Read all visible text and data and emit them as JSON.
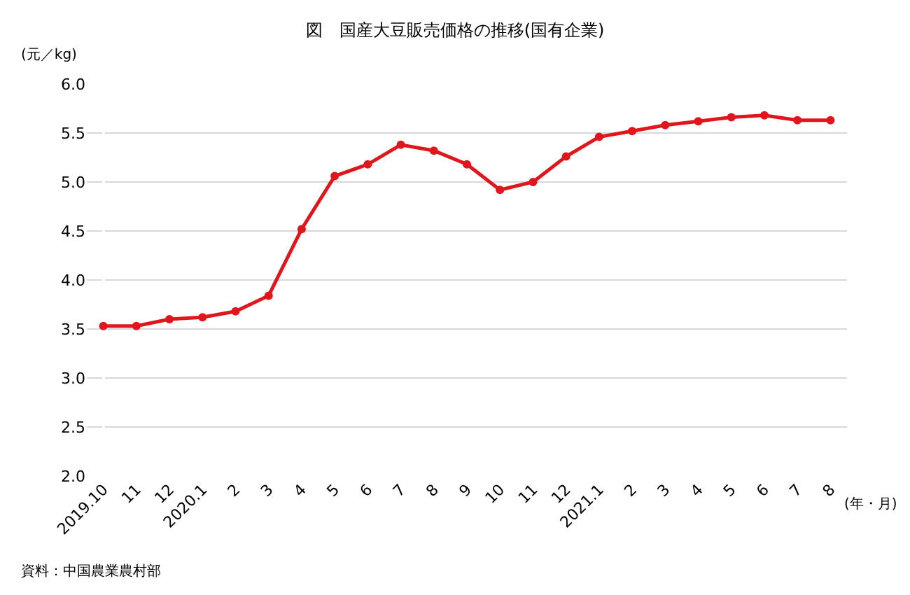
{
  "chart_data": {
    "type": "line",
    "title": "図　国産大豆販売価格の推移(国有企業)",
    "ylabel": "(元／kg)",
    "xlabel": "(年・月)",
    "categories": [
      "2019.10",
      "11",
      "12",
      "2020.1",
      "2",
      "3",
      "4",
      "5",
      "6",
      "7",
      "8",
      "9",
      "10",
      "11",
      "12",
      "2021.1",
      "2",
      "3",
      "4",
      "5",
      "6",
      "7",
      "8"
    ],
    "series": [
      {
        "color": "#e0161d",
        "values": [
          3.53,
          3.53,
          3.6,
          3.62,
          3.68,
          3.84,
          4.52,
          5.06,
          5.18,
          5.38,
          5.32,
          5.18,
          4.92,
          5.0,
          5.26,
          5.46,
          5.52,
          5.58,
          5.62,
          5.66,
          5.68,
          5.63,
          5.63
        ]
      }
    ],
    "ylim": [
      2.0,
      6.0
    ],
    "yticks": [
      {
        "value": 2.0,
        "label": "2.0"
      },
      {
        "value": 2.5,
        "label": "2.5"
      },
      {
        "value": 3.0,
        "label": "3.0"
      },
      {
        "value": 3.5,
        "label": "3.5"
      },
      {
        "value": 4.0,
        "label": "4.0"
      },
      {
        "value": 4.5,
        "label": "4.5"
      },
      {
        "value": 5.0,
        "label": "5.0"
      },
      {
        "value": 5.5,
        "label": "5.5"
      },
      {
        "value": 6.0,
        "label": "6.0"
      }
    ],
    "grid": "y",
    "marker": "circle",
    "line_style": "solid",
    "legend": false,
    "annotations": [
      "資料：中国農業農村部"
    ]
  }
}
